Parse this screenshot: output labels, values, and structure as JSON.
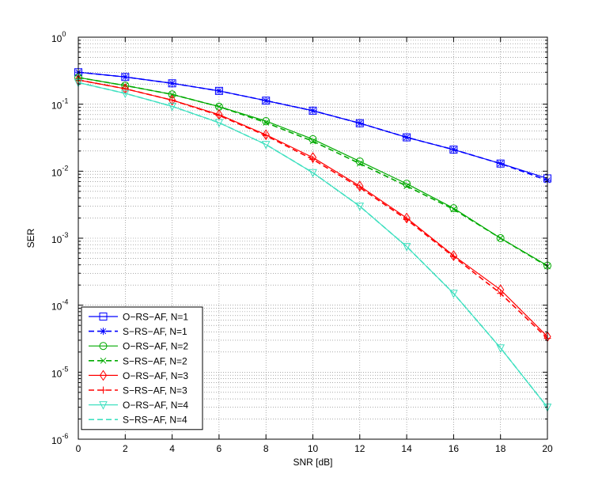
{
  "chart_data": {
    "type": "line",
    "title": "",
    "xlabel": "SNR [dB]",
    "ylabel": "SER",
    "xlim": [
      0,
      20
    ],
    "ylim": [
      1e-06,
      1
    ],
    "yscale": "log",
    "grid": true,
    "legend_position": "bottom-left",
    "x": [
      0,
      2,
      4,
      6,
      8,
      10,
      12,
      14,
      16,
      18,
      20
    ],
    "x_ticks": [
      "0",
      "2",
      "4",
      "6",
      "8",
      "10",
      "12",
      "14",
      "16",
      "18",
      "20"
    ],
    "y_ticks": [
      {
        "base": "10",
        "exp": "0",
        "value": 1
      },
      {
        "base": "10",
        "exp": "-1",
        "value": 0.1
      },
      {
        "base": "10",
        "exp": "-2",
        "value": 0.01
      },
      {
        "base": "10",
        "exp": "-3",
        "value": 0.001
      },
      {
        "base": "10",
        "exp": "-4",
        "value": 0.0001
      },
      {
        "base": "10",
        "exp": "-5",
        "value": 1e-05
      },
      {
        "base": "10",
        "exp": "-6",
        "value": 1e-06
      }
    ],
    "series": [
      {
        "name": "O−RS−AF, N=1",
        "color": "#0000ff",
        "dash": "solid",
        "marker": "square",
        "values": [
          0.3,
          0.255,
          0.205,
          0.158,
          0.113,
          0.08,
          0.052,
          0.032,
          0.021,
          0.013,
          0.0078
        ]
      },
      {
        "name": "S−RS−AF, N=1",
        "color": "#0000ff",
        "dash": "dashed",
        "marker": "asterisk",
        "values": [
          0.3,
          0.255,
          0.205,
          0.158,
          0.113,
          0.08,
          0.052,
          0.032,
          0.021,
          0.013,
          0.0073
        ]
      },
      {
        "name": "O−RS−AF, N=2",
        "color": "#00aa00",
        "dash": "solid",
        "marker": "circle",
        "values": [
          0.25,
          0.19,
          0.14,
          0.092,
          0.056,
          0.03,
          0.014,
          0.0065,
          0.0028,
          0.001,
          0.00039
        ]
      },
      {
        "name": "S−RS−AF, N=2",
        "color": "#00aa00",
        "dash": "dashed",
        "marker": "x",
        "values": [
          0.25,
          0.19,
          0.14,
          0.092,
          0.053,
          0.028,
          0.013,
          0.006,
          0.0027,
          0.001,
          0.00038
        ]
      },
      {
        "name": "O−RS−AF, N=3",
        "color": "#ff0000",
        "dash": "solid",
        "marker": "diamond",
        "values": [
          0.23,
          0.17,
          0.115,
          0.07,
          0.035,
          0.016,
          0.006,
          0.002,
          0.00055,
          0.00017,
          3.4e-05
        ]
      },
      {
        "name": "S−RS−AF, N=3",
        "color": "#ff0000",
        "dash": "dashed",
        "marker": "plus",
        "values": [
          0.23,
          0.17,
          0.115,
          0.068,
          0.034,
          0.015,
          0.0057,
          0.0019,
          0.00053,
          0.00015,
          3.2e-05
        ]
      },
      {
        "name": "O−RS−AF, N=4",
        "color": "#40e0c0",
        "dash": "solid",
        "marker": "triangle-down",
        "values": [
          0.21,
          0.145,
          0.093,
          0.053,
          0.025,
          0.0095,
          0.003,
          0.00075,
          0.00015,
          2.3e-05,
          3e-06
        ]
      },
      {
        "name": "S−RS−AF, N=4",
        "color": "#40e0c0",
        "dash": "dashed",
        "marker": "none",
        "values": [
          0.21,
          0.145,
          0.093,
          0.053,
          0.025,
          0.0095,
          0.003,
          0.00075,
          0.00015,
          2.3e-05,
          3e-06
        ]
      }
    ]
  }
}
